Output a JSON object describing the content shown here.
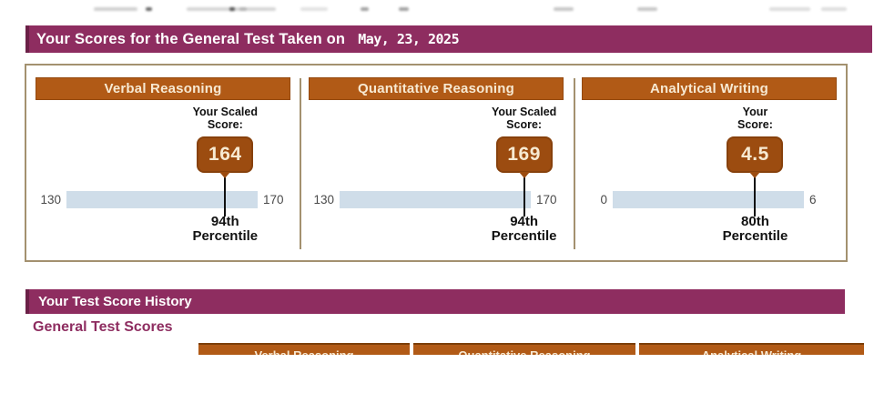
{
  "header": {
    "title": "Your Scores for the General Test Taken on",
    "date": "May, 23, 2025"
  },
  "score_panels": [
    {
      "title": "Verbal Reasoning",
      "score_label_line1": "Your Scaled",
      "score_label_line2": "Score:",
      "score": "164",
      "scale_min": "130",
      "scale_max": "170",
      "percentile_value": "94th",
      "percentile_word": "Percentile",
      "marker_pct": 83
    },
    {
      "title": "Quantitative Reasoning",
      "score_label_line1": "Your Scaled",
      "score_label_line2": "Score:",
      "score": "169",
      "scale_min": "130",
      "scale_max": "170",
      "percentile_value": "94th",
      "percentile_word": "Percentile",
      "marker_pct": 96.5
    },
    {
      "title": "Analytical Writing",
      "score_label_line1": "Your",
      "score_label_line2": "Score:",
      "score": "4.5",
      "scale_min": "0",
      "scale_max": "6",
      "percentile_value": "80th",
      "percentile_word": "Percentile",
      "marker_pct": 74.5
    }
  ],
  "history": {
    "section_title": "Your Test Score History",
    "subsection_title": "General Test Scores",
    "columns": [
      "Verbal Reasoning",
      "Quantitative Reasoning",
      "Analytical Writing"
    ]
  },
  "colors": {
    "maroon": "#8e2d60",
    "orange_header": "#b15a16",
    "score_box": "#9c4c10",
    "scale_bar": "#cfdde9",
    "panel_border": "#a3916f",
    "cream_text": "#f7e9d2"
  }
}
